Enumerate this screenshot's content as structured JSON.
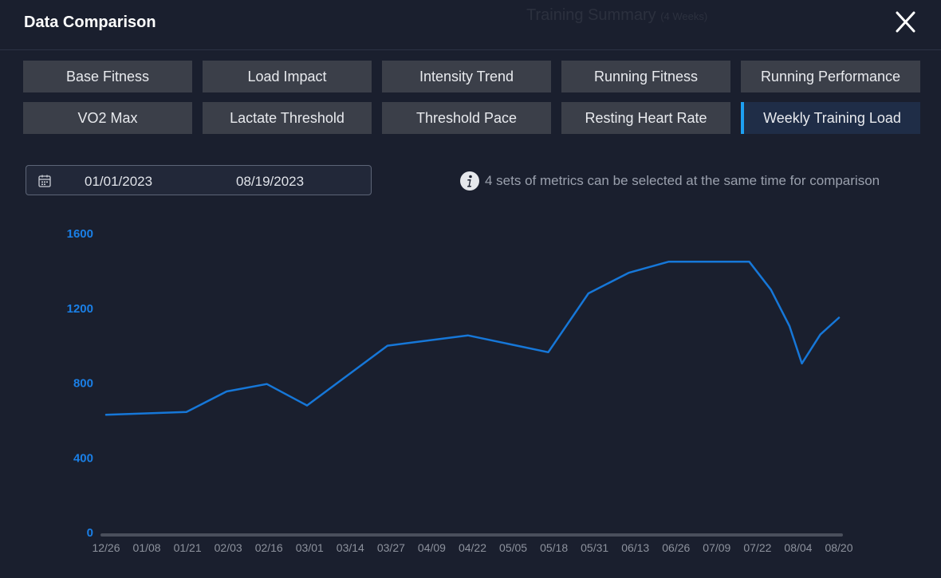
{
  "background_text": {
    "title": "Training Summary",
    "subtitle": "(4 Weeks)"
  },
  "header": {
    "title": "Data Comparison",
    "close_icon": "close-icon"
  },
  "tabs": [
    {
      "label": "Base Fitness",
      "active": false
    },
    {
      "label": "Load Impact",
      "active": false
    },
    {
      "label": "Intensity Trend",
      "active": false
    },
    {
      "label": "Running Fitness",
      "active": false
    },
    {
      "label": "Running Performance",
      "active": false
    },
    {
      "label": "VO2 Max",
      "active": false
    },
    {
      "label": "Lactate Threshold",
      "active": false
    },
    {
      "label": "Threshold Pace",
      "active": false
    },
    {
      "label": "Resting Heart Rate",
      "active": false
    },
    {
      "label": "Weekly Training Load",
      "active": true
    }
  ],
  "date_range": {
    "icon": "calendar-icon",
    "start": "01/01/2023",
    "end": "08/19/2023"
  },
  "info": {
    "icon": "info-icon",
    "text": "4 sets of metrics can be selected at the same time for comparison"
  },
  "colors": {
    "accent": "#1ea0f2",
    "line": "#1677d8",
    "axis_label": "#1a7fe6"
  },
  "chart_data": {
    "type": "line",
    "ylim": [
      0,
      1600
    ],
    "yticks": [
      "0",
      "400",
      "800",
      "1200",
      "1600"
    ],
    "x": [
      "12/26",
      "01/08",
      "01/21",
      "02/03",
      "02/16",
      "03/01",
      "03/14",
      "03/27",
      "04/09",
      "04/22",
      "05/05",
      "05/18",
      "05/31",
      "06/13",
      "06/26",
      "07/09",
      "07/22",
      "08/04",
      "08/20"
    ],
    "points": [
      {
        "x": "12/26",
        "y": 630
      },
      {
        "x": "01/21",
        "y": 645
      },
      {
        "x": "02/03",
        "y": 755
      },
      {
        "x": "02/16",
        "y": 795
      },
      {
        "x": "03/01",
        "y": 680
      },
      {
        "x": "03/27",
        "y": 1000
      },
      {
        "x": "04/22",
        "y": 1055
      },
      {
        "x": "05/18",
        "y": 965
      },
      {
        "x": "05/31",
        "y": 1280
      },
      {
        "x": "06/13",
        "y": 1390
      },
      {
        "x": "06/26",
        "y": 1450
      },
      {
        "x": "07/22",
        "y": 1450
      },
      {
        "x": "07/29",
        "y": 1300
      },
      {
        "x": "08/04",
        "y": 1105
      },
      {
        "x": "08/08",
        "y": 905
      },
      {
        "x": "08/14",
        "y": 1060
      },
      {
        "x": "08/20",
        "y": 1150
      }
    ]
  }
}
